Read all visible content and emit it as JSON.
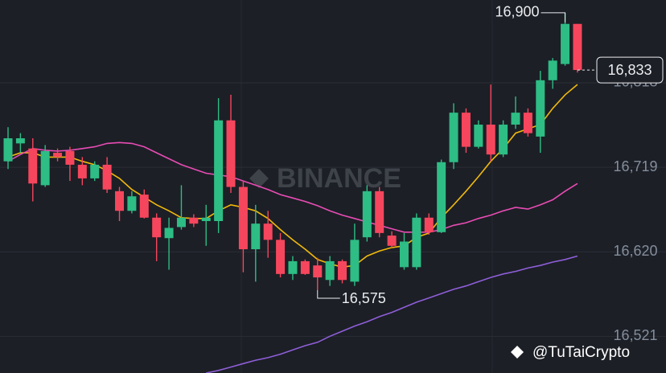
{
  "chart_data": {
    "type": "candlestick",
    "categories": [
      null,
      null,
      null,
      null,
      null,
      null,
      null,
      null,
      null,
      null,
      null,
      null,
      null,
      null,
      null,
      null,
      null,
      null,
      null,
      null,
      null,
      null,
      null,
      null,
      null,
      null,
      null,
      null,
      null,
      null,
      null,
      null,
      null,
      null,
      null,
      null,
      null,
      null,
      null,
      null,
      null,
      null,
      null,
      null,
      null,
      null,
      null
    ],
    "open": [
      16726,
      16747,
      16741,
      16698,
      16736,
      16738,
      16722,
      16706,
      16722,
      16691,
      16668,
      16687,
      16660,
      16636,
      16649,
      16660,
      16656,
      16656,
      16774,
      16696,
      16623,
      16653,
      16634,
      16594,
      16609,
      16604,
      16587,
      16609,
      16585,
      16637,
      16691,
      16639,
      16602,
      16602,
      16660,
      16643,
      16725,
      16783,
      16743,
      16769,
      16734,
      16769,
      16783,
      16755,
      16821,
      16840,
      16887
    ],
    "high": [
      16766,
      16759,
      16753,
      16745,
      16741,
      16743,
      16731,
      16726,
      16731,
      16696,
      16691,
      16693,
      16665,
      16660,
      16698,
      16664,
      16675,
      16800,
      16804,
      16703,
      16675,
      16668,
      16642,
      16615,
      16611,
      16613,
      16615,
      16611,
      16653,
      16698,
      16696,
      16644,
      16642,
      16665,
      16665,
      16728,
      16794,
      16788,
      16774,
      16816,
      16774,
      16802,
      16788,
      16832,
      16847,
      16900,
      16887
    ],
    "low": [
      16717,
      16736,
      16679,
      16696,
      16726,
      16703,
      16698,
      16703,
      16689,
      16656,
      16665,
      16659,
      16609,
      16599,
      16646,
      16649,
      16627,
      16642,
      16689,
      16596,
      16585,
      16613,
      16590,
      16587,
      16593,
      16575,
      16580,
      16583,
      16580,
      16632,
      16637,
      16625,
      16599,
      16599,
      16640,
      16642,
      16717,
      16736,
      16741,
      16726,
      16731,
      16764,
      16755,
      16736,
      16811,
      16838,
      16830
    ],
    "close": [
      16753,
      16753,
      16700,
      16738,
      16731,
      16722,
      16706,
      16722,
      16693,
      16668,
      16685,
      16660,
      16637,
      16648,
      16660,
      16653,
      16660,
      16774,
      16696,
      16623,
      16653,
      16634,
      16594,
      16609,
      16594,
      16590,
      16609,
      16587,
      16634,
      16691,
      16642,
      16627,
      16632,
      16660,
      16643,
      16725,
      16783,
      16743,
      16769,
      16734,
      16769,
      16783,
      16759,
      16821,
      16844,
      16887,
      16833
    ],
    "up_color": "#2ebd85",
    "down_color": "#f6465d",
    "lines": [
      {
        "color": "#f0b90b",
        "values": [
          16731,
          16736,
          16736,
          16731,
          16731,
          16731,
          16726,
          16722,
          16715,
          16706,
          16693,
          16684,
          16675,
          16668,
          16660,
          16659,
          16659,
          16668,
          16675,
          16672,
          16668,
          16659,
          16646,
          16634,
          16623,
          16611,
          16606,
          16602,
          16604,
          16615,
          16621,
          16625,
          16627,
          16637,
          16642,
          16660,
          16675,
          16691,
          16708,
          16726,
          16741,
          16759,
          16764,
          16769,
          16788,
          16804,
          16816
        ]
      },
      {
        "color": "#e84cb4",
        "values": [
          16726,
          16734,
          16741,
          16739,
          16738,
          16739,
          16741,
          16743,
          16747,
          16748,
          16747,
          16743,
          16736,
          16729,
          16722,
          16717,
          16712,
          16710,
          16708,
          16703,
          16698,
          16693,
          16687,
          16683,
          16679,
          16674,
          16668,
          16663,
          16659,
          16655,
          16651,
          16647,
          16643,
          16643,
          16643,
          16646,
          16651,
          16654,
          16659,
          16663,
          16668,
          16672,
          16670,
          16675,
          16681,
          16691,
          16700
        ]
      },
      {
        "color": "#8e5ed8",
        "values": [
          null,
          null,
          null,
          null,
          null,
          null,
          null,
          null,
          null,
          null,
          null,
          null,
          null,
          null,
          null,
          null,
          16478,
          16481,
          16485,
          16489,
          16493,
          16496,
          16500,
          16505,
          16510,
          16514,
          16521,
          16527,
          16533,
          16538,
          16544,
          16549,
          16555,
          16561,
          16566,
          16571,
          16576,
          16580,
          16585,
          16590,
          16594,
          16597,
          16601,
          16604,
          16608,
          16611,
          16615
        ]
      }
    ],
    "ylim": [
      16478,
      16915
    ],
    "yticks": [
      {
        "value": 16521,
        "label": "16,521"
      },
      {
        "value": 16620,
        "label": "16,620"
      },
      {
        "value": 16719,
        "label": "16,719"
      },
      {
        "value": 16818,
        "label": "16,818"
      }
    ],
    "grid": true,
    "high_label": {
      "value": 16900,
      "label": "16,900"
    },
    "low_label": {
      "value": 16575,
      "label": "16,575"
    },
    "last_price": {
      "value": 16833,
      "label": "16,833"
    },
    "watermark": "BINANCE",
    "credit": "@TuTaiCrypto"
  }
}
